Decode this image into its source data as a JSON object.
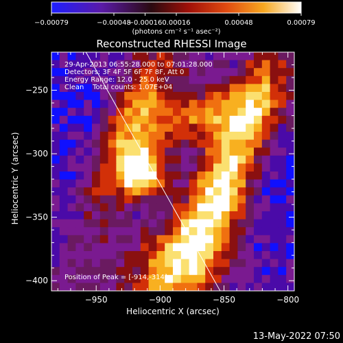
{
  "colorbar": {
    "ticks": [
      "-0.00079",
      "-0.00048",
      "-0.00016",
      "0.00016",
      "0.00048",
      "0.00079"
    ],
    "unit_label": "(photons cm⁻² s⁻¹ asec⁻²)"
  },
  "title": "Reconstructed RHESSI Image",
  "info": {
    "line1": "29-Apr-2013 06:55:28.000 to 07:01:28.000",
    "line2": "Detectors: 3F 4F 5F 6F 7F 8F, Att 0",
    "line3": "Energy Range: 12.0 - 25.0 keV",
    "line4": "Clean    Total counts: 1.07E+04"
  },
  "peak_text": "Position of Peak = [-914,-314]",
  "footer_date": "13-May-2022 07:50",
  "chart_data": {
    "type": "heatmap",
    "title": "Reconstructed RHESSI Image",
    "xlabel": "Heliocentric X (arcsec)",
    "ylabel": "Heliocentric Y (arcsec)",
    "xlim": [
      -985,
      -795
    ],
    "ylim": [
      -408,
      -220
    ],
    "x_ticks": [
      -950,
      -900,
      -850,
      -800
    ],
    "y_ticks": [
      -250,
      -300,
      -350,
      -400
    ],
    "x_tick_labels": [
      "−950",
      "−900",
      "−850",
      "−800"
    ],
    "y_tick_labels": [
      "−250",
      "−300",
      "−350",
      "−400"
    ],
    "colorbar_range": [
      -0.00079,
      0.00079
    ],
    "peak": {
      "x": -914,
      "y": -314
    },
    "limb_line": [
      [
        -958,
        -220
      ],
      [
        -853,
        -408
      ]
    ],
    "colormap": [
      "#1010ff",
      "#4a0aa8",
      "#7a1a90",
      "#6a1a60",
      "#8a1010",
      "#d23008",
      "#f07010",
      "#f8b020",
      "#fbe070",
      "#ffffff"
    ]
  }
}
